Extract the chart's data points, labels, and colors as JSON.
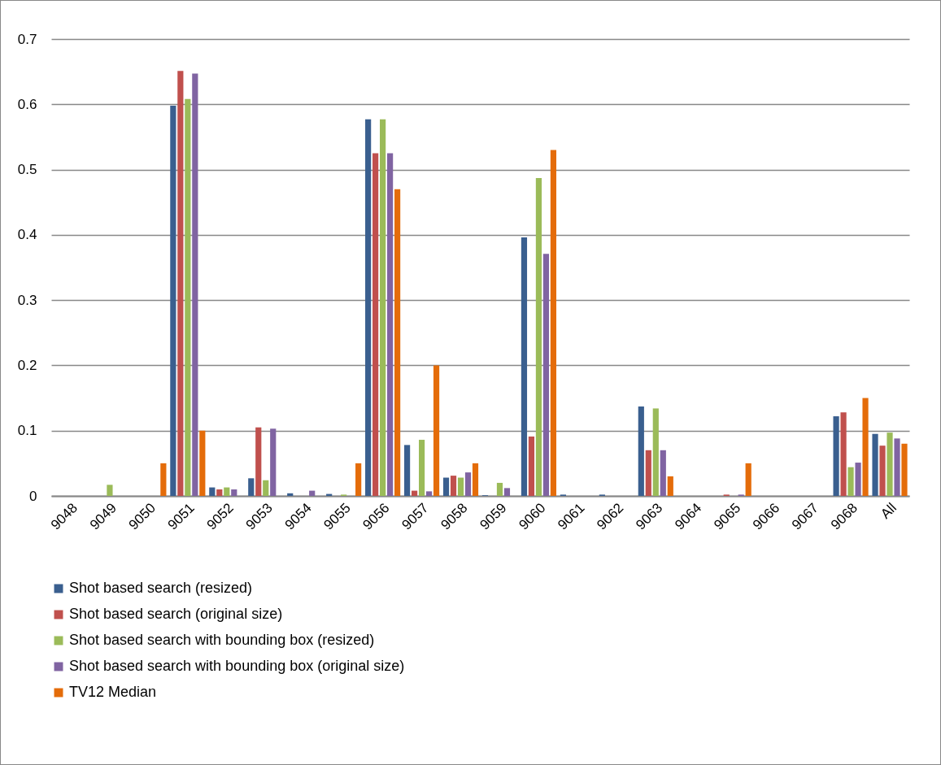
{
  "chart_data": {
    "type": "bar",
    "categories": [
      "9048",
      "9049",
      "9050",
      "9051",
      "9052",
      "9053",
      "9054",
      "9055",
      "9056",
      "9057",
      "9058",
      "9059",
      "9060",
      "9061",
      "9062",
      "9063",
      "9064",
      "9065",
      "9066",
      "9067",
      "9068",
      "All"
    ],
    "series": [
      {
        "name": "Shot based search (resized)",
        "color": "#3a5f8f",
        "values": [
          0,
          0,
          0,
          0.598,
          0.013,
          0.027,
          0.004,
          0.003,
          0.577,
          0.078,
          0.028,
          0.001,
          0.396,
          0.002,
          0.002,
          0.137,
          0,
          0,
          0,
          0,
          0.122,
          0.095
        ]
      },
      {
        "name": "Shot based search (original size)",
        "color": "#c0504d",
        "values": [
          0,
          0,
          0,
          0.651,
          0.01,
          0.105,
          null,
          0,
          0.525,
          0.008,
          0.031,
          null,
          0.091,
          0,
          0,
          0.07,
          0,
          0.002,
          0,
          0,
          0.128,
          0.077
        ]
      },
      {
        "name": "Shot based search with bounding box (resized)",
        "color": "#9bbb59",
        "values": [
          0,
          0.017,
          0,
          0.608,
          0.013,
          0.024,
          0,
          0.002,
          0.577,
          0.086,
          0.028,
          0.02,
          0.487,
          0,
          null,
          0.134,
          0,
          0,
          0,
          0,
          0.044,
          0.097
        ]
      },
      {
        "name": "Shot based search  with bounding box (original size)",
        "color": "#8064a2",
        "values": [
          0,
          0,
          0,
          0.647,
          0.01,
          0.103,
          0.008,
          0,
          0.525,
          0.007,
          0.036,
          0.012,
          0.371,
          0,
          0,
          0.07,
          0,
          0.002,
          0,
          0,
          0.051,
          0.088
        ]
      },
      {
        "name": "TV12 Median",
        "color": "#e46c0a",
        "values": [
          0,
          0,
          0.05,
          0.1,
          0,
          0,
          0,
          0.05,
          0.47,
          0.2,
          0.05,
          0,
          0.53,
          0,
          0,
          0.03,
          0,
          0.05,
          0,
          0,
          0.15,
          0.08
        ]
      }
    ],
    "ylim": [
      0,
      0.7
    ],
    "yticks": [
      0,
      0.1,
      0.2,
      0.3,
      0.4,
      0.5,
      0.6,
      0.7
    ],
    "grid": "y",
    "legend": "bottom"
  }
}
